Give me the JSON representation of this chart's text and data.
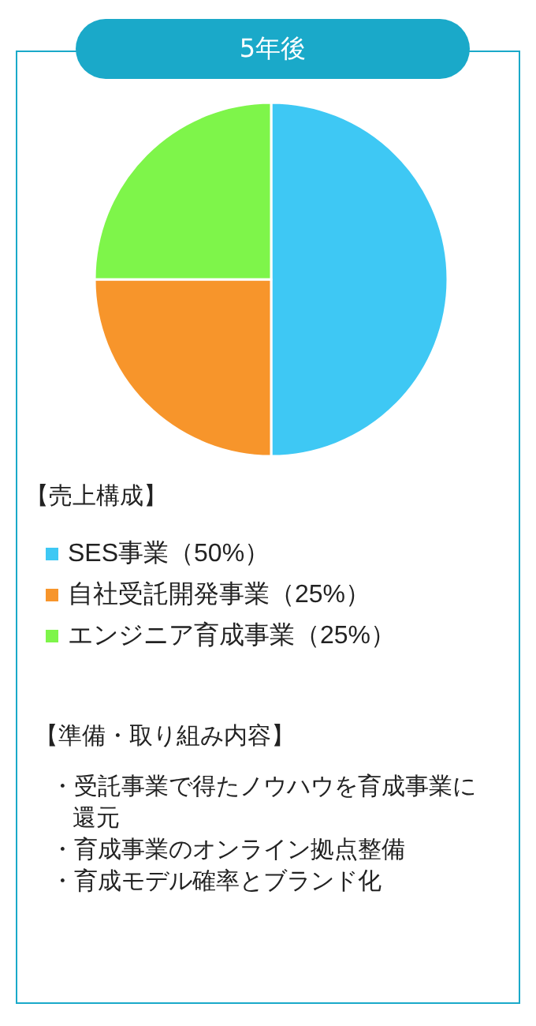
{
  "chart_data": {
    "type": "pie",
    "title": "5年後",
    "legend_title": "【売上構成】",
    "categories": [
      "SES事業（50%）",
      "自社受託開発事業（25%）",
      "エンジニア育成事業（25%）"
    ],
    "values": [
      50,
      25,
      25
    ],
    "colors": [
      "#3ec8f4",
      "#f7952b",
      "#7ef54a"
    ],
    "legend": "bottom left",
    "annotations": [
      "【準備・取り組み内容】",
      "・受託事業で得たノウハウを育成事業に還元",
      "・育成事業のオンライン拠点整備",
      "・育成モデル確率とブランド化"
    ]
  }
}
